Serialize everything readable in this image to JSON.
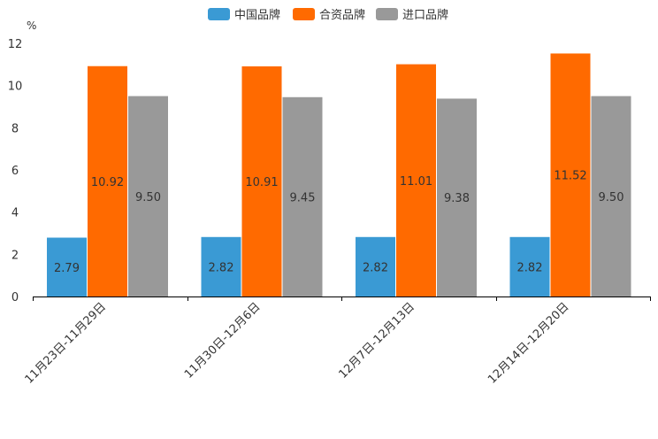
{
  "chart_data": {
    "type": "bar",
    "title": "",
    "xlabel": "",
    "ylabel": "%",
    "ylim": [
      0,
      12
    ],
    "yticks": [
      0,
      2,
      4,
      6,
      8,
      10,
      12
    ],
    "grid": false,
    "legend_position": "top-center",
    "categories": [
      "11月23日-11月29日",
      "11月30日-12月6日",
      "12月7日-12月13日",
      "12月14日-12月20日"
    ],
    "series": [
      {
        "name": "中国品牌",
        "color": "#3a9ad4",
        "values": [
          2.79,
          2.82,
          2.82,
          2.82
        ],
        "labels": [
          "2.79",
          "2.82",
          "2.82",
          "2.82"
        ]
      },
      {
        "name": "合资品牌",
        "color": "#ff6a00",
        "values": [
          10.92,
          10.91,
          11.01,
          11.52
        ],
        "labels": [
          "10.92",
          "10.91",
          "11.01",
          "11.52"
        ]
      },
      {
        "name": "进口品牌",
        "color": "#999999",
        "values": [
          9.5,
          9.45,
          9.38,
          9.5
        ],
        "labels": [
          "9.50",
          "9.45",
          "9.38",
          "9.50"
        ]
      }
    ]
  }
}
